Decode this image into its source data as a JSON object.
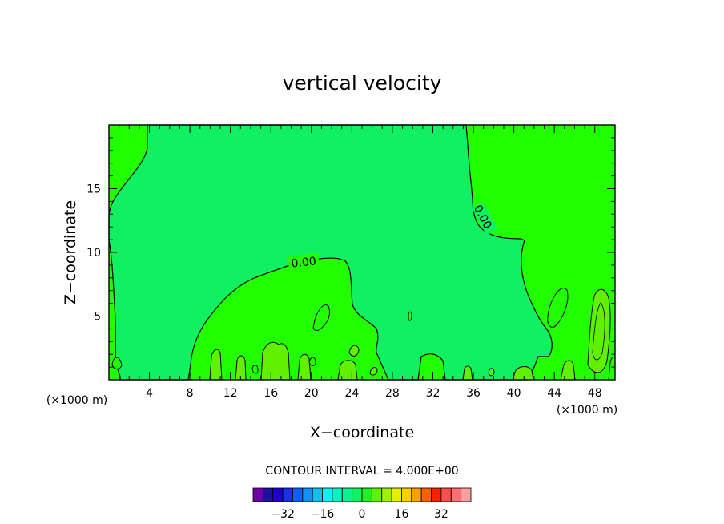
{
  "chart_data": {
    "type": "contour",
    "title": "vertical velocity",
    "xlabel": "X−coordinate",
    "ylabel": "Z−coordinate",
    "x_unit_left": "(×1000 m)",
    "x_unit_right": "(×1000 m)",
    "xlim": [
      0,
      50
    ],
    "ylim": [
      0,
      20
    ],
    "x_ticks": [
      4,
      8,
      12,
      16,
      20,
      24,
      28,
      32,
      36,
      40,
      44,
      48
    ],
    "y_ticks": [
      5,
      10,
      15
    ],
    "contour_labels": [
      "0.00",
      "0.00"
    ],
    "contour_interval_text": "CONTOUR INTERVAL = 4.000E+00",
    "colorbar": {
      "ticks": [
        -32,
        -16,
        0,
        16,
        32
      ],
      "tick_labels": [
        "−32",
        "−16",
        "0",
        "16",
        "32"
      ],
      "colors": [
        "#7000a8",
        "#1c10a0",
        "#2000d0",
        "#1830f0",
        "#1060f8",
        "#1090f8",
        "#10c0f0",
        "#10f0f0",
        "#10f0c0",
        "#10f090",
        "#10f060",
        "#20f020",
        "#60f000",
        "#a0f000",
        "#e0f000",
        "#f8d000",
        "#f8a000",
        "#f86000",
        "#f82000",
        "#f85050",
        "#f87070",
        "#f8a0a0"
      ]
    },
    "regions": {
      "background_color": "#22ff00",
      "negative_color": "#10f060",
      "positive_color": "#60f000"
    }
  }
}
